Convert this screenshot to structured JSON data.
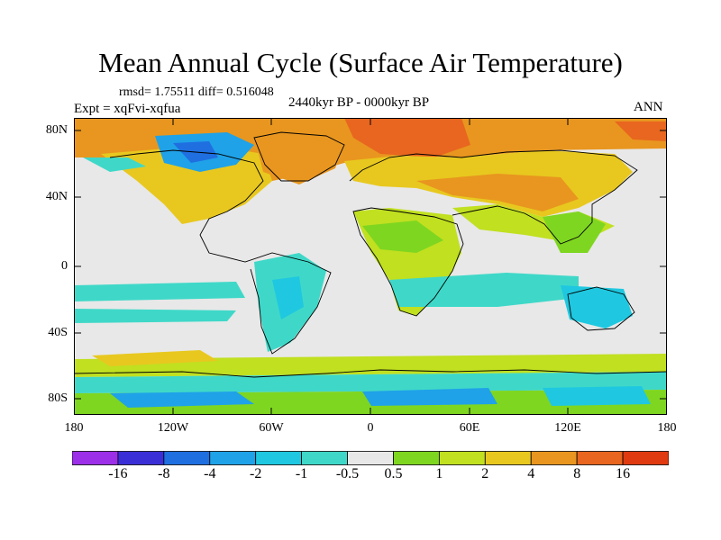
{
  "title": "Mean Annual Cycle (Surface Air Temperature)",
  "stats_text": "rmsd= 1.75511 diff= 0.516048",
  "experiment_text": "Expt = xqFvi-xqfua",
  "period_text": "2440kyr BP - 0000kyr BP",
  "season": "ANN",
  "lat_labels": [
    "80N",
    "40N",
    "0",
    "40S",
    "80S"
  ],
  "lon_labels": [
    "180",
    "120W",
    "60W",
    "0",
    "60E",
    "120E",
    "180"
  ],
  "colorbar": {
    "labels": [
      "-16",
      "-8",
      "-4",
      "-2",
      "-1",
      "-0.5",
      "0.5",
      "1",
      "2",
      "4",
      "8",
      "16"
    ],
    "colors": [
      "#9b30e8",
      "#3a2fd6",
      "#1f6fe0",
      "#1fa2e8",
      "#1fc8e0",
      "#3fd8c8",
      "#e8e8e8",
      "#7ed620",
      "#c0e020",
      "#e8c81f",
      "#e8961f",
      "#e8661f",
      "#e03a10"
    ]
  }
}
